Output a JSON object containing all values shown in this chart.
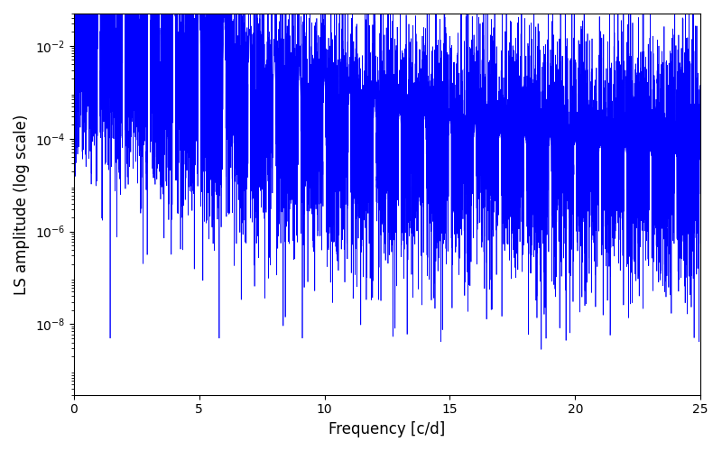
{
  "xlabel": "Frequency [c/d]",
  "ylabel": "LS amplitude (log scale)",
  "xlim": [
    0,
    25
  ],
  "ylim": [
    3e-10,
    0.05
  ],
  "line_color": "#0000ff",
  "line_width": 0.5,
  "background_color": "#ffffff",
  "fig_width": 8.0,
  "fig_height": 5.0,
  "dpi": 100,
  "yticks": [
    1e-08,
    1e-06,
    0.0001,
    0.01
  ],
  "seed": 7,
  "n_points": 10000,
  "freq_max": 25.0
}
